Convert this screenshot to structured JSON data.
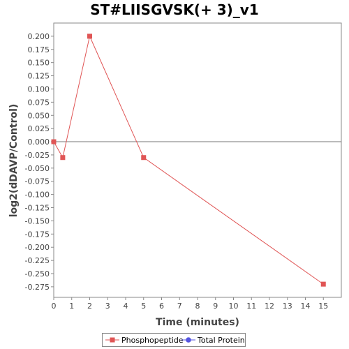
{
  "chart_data": {
    "type": "line",
    "title": "ST#LIISGVSK(+ 3)_v1",
    "xlabel": "Time (minutes)",
    "ylabel": "log2(dDAVP/Control)",
    "xlim": [
      0,
      16
    ],
    "ylim": [
      -0.295,
      0.225
    ],
    "x_ticks": [
      0,
      1,
      2,
      3,
      4,
      5,
      6,
      7,
      8,
      9,
      10,
      11,
      12,
      13,
      14,
      15
    ],
    "y_ticks": [
      0.2,
      0.175,
      0.15,
      0.125,
      0.1,
      0.075,
      0.05,
      0.025,
      0.0,
      -0.025,
      -0.05,
      -0.075,
      -0.1,
      -0.125,
      -0.15,
      -0.175,
      -0.2,
      -0.225,
      -0.25,
      -0.275
    ],
    "y_tick_labels": [
      "0.200",
      "0.175",
      "0.150",
      "0.125",
      "0.100",
      "0.075",
      "0.050",
      "0.025",
      "0.000",
      "-0.025",
      "-0.050",
      "-0.075",
      "-0.100",
      "-0.125",
      "-0.150",
      "-0.175",
      "-0.200",
      "-0.225",
      "-0.250",
      "-0.275"
    ],
    "grid": false,
    "zero_line": true,
    "legend_position": "bottom",
    "series": [
      {
        "name": "Phosphopeptide",
        "color": "#e05555",
        "marker": "square",
        "x": [
          0,
          0.5,
          2,
          5,
          15
        ],
        "y": [
          0.0,
          -0.03,
          0.2,
          -0.03,
          -0.27
        ]
      },
      {
        "name": "Total Protein",
        "color": "#5555e0",
        "marker": "circle",
        "x": [],
        "y": []
      }
    ]
  }
}
